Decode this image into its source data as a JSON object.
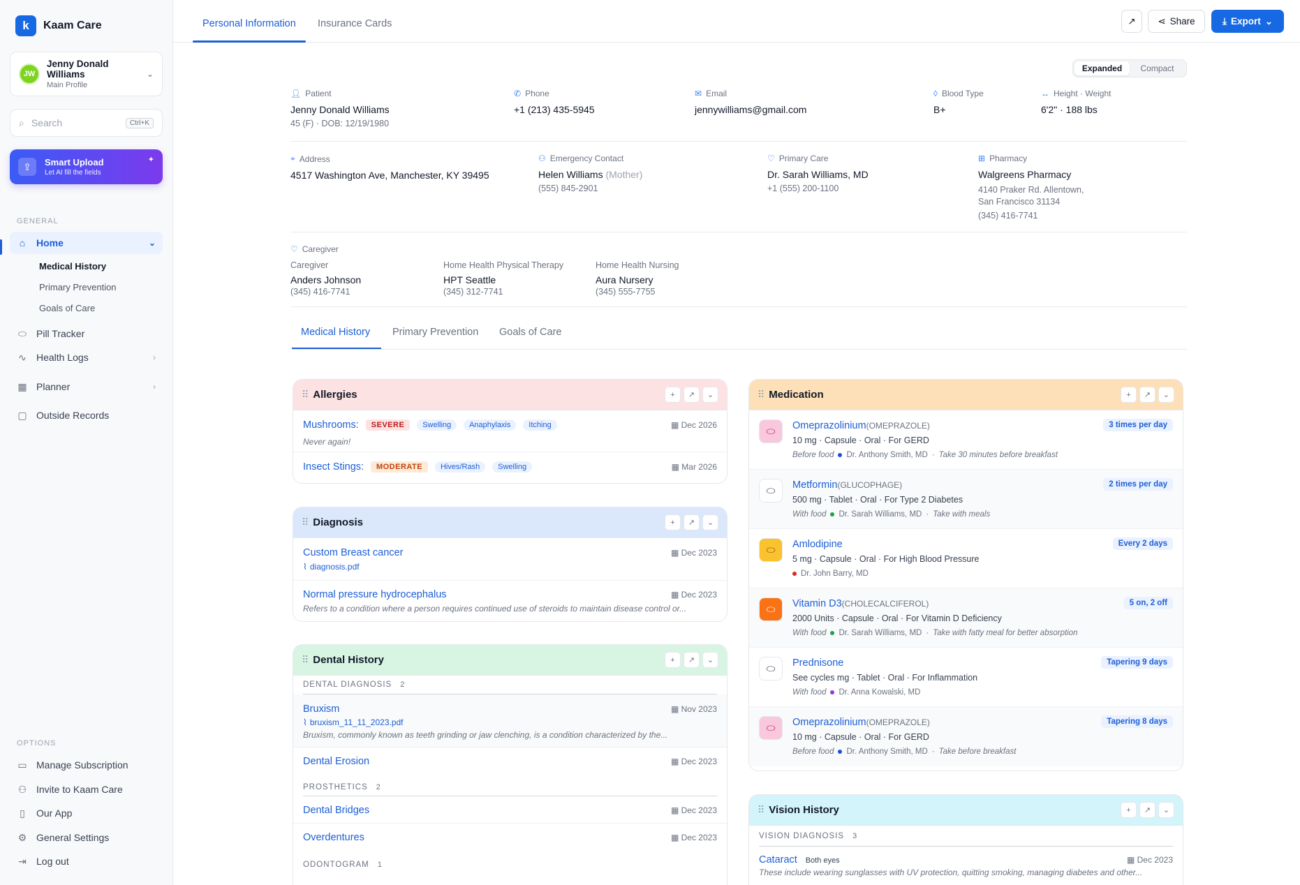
{
  "app": {
    "name": "Kaam Care"
  },
  "profile": {
    "initials": "JW",
    "name": "Jenny Donald Williams",
    "subtitle": "Main Profile"
  },
  "search": {
    "placeholder": "Search",
    "shortcut": "Ctrl+K"
  },
  "smart_upload": {
    "title": "Smart Upload",
    "subtitle": "Let AI fill the fields"
  },
  "sidebar": {
    "general_label": "GENERAL",
    "home": "Home",
    "home_sub": [
      "Medical History",
      "Primary Prevention",
      "Goals of Care"
    ],
    "items": [
      "Pill Tracker",
      "Health Logs",
      "Planner",
      "Outside Records"
    ],
    "options_label": "OPTIONS",
    "options": [
      "Manage Subscription",
      "Invite to Kaam Care",
      "Our App",
      "General Settings",
      "Log out"
    ]
  },
  "top_tabs": [
    "Personal Information",
    "Insurance Cards"
  ],
  "toolbar": {
    "share": "Share",
    "export": "Export"
  },
  "view_toggle": [
    "Expanded",
    "Compact"
  ],
  "personal": {
    "patient": {
      "label": "Patient",
      "value": "Jenny Donald Williams",
      "sub": "45 (F) · DOB: 12/19/1980"
    },
    "phone": {
      "label": "Phone",
      "value": "+1 (213) 435-5945"
    },
    "email": {
      "label": "Email",
      "value": "jennywilliams@gmail.com"
    },
    "blood": {
      "label": "Blood Type",
      "value": "B+"
    },
    "hw": {
      "label": "Height · Weight",
      "value": "6'2\" · 188 lbs"
    },
    "address": {
      "label": "Address",
      "value": "4517 Washington Ave, Manchester, KY 39495"
    },
    "emergency": {
      "label": "Emergency Contact",
      "name": "Helen Williams",
      "rel": "(Mother)",
      "phone": "(555) 845-2901"
    },
    "primary_care": {
      "label": "Primary Care",
      "value": "Dr. Sarah Williams, MD",
      "phone": "+1 (555) 200-1100"
    },
    "pharmacy": {
      "label": "Pharmacy",
      "value": "Walgreens Pharmacy",
      "addr1": "4140 Praker Rd. Allentown,",
      "addr2": "San Francisco 31134",
      "phone": "(345) 416-7741"
    },
    "caregiver": {
      "label": "Caregiver",
      "entries": [
        {
          "role": "Caregiver",
          "name": "Anders Johnson",
          "phone": "(345) 416-7741"
        },
        {
          "role": "Home Health Physical Therapy",
          "name": "HPT Seattle",
          "phone": "(345) 312-7741"
        },
        {
          "role": "Home Health Nursing",
          "name": "Aura Nursery",
          "phone": "(345) 555-7755"
        }
      ]
    }
  },
  "content_tabs": [
    "Medical History",
    "Primary Prevention",
    "Goals of Care"
  ],
  "allergies": {
    "title": "Allergies",
    "color": "#fde2e4",
    "items": [
      {
        "name": "Mushrooms:",
        "severity": "SEVERE",
        "tags": [
          "Swelling",
          "Anaphylaxis",
          "Itching"
        ],
        "date": "Dec 2026",
        "note": "Never again!"
      },
      {
        "name": "Insect Stings:",
        "severity": "MODERATE",
        "tags": [
          "Hives/Rash",
          "Swelling"
        ],
        "date": "Mar 2026"
      }
    ]
  },
  "diagnosis": {
    "title": "Diagnosis",
    "color": "#dbe8fb",
    "items": [
      {
        "name": "Custom Breast cancer",
        "file": "diagnosis.pdf",
        "date": "Dec 2023"
      },
      {
        "name": "Normal pressure hydrocephalus",
        "note": "Refers to a condition where a person requires continued use of steroids to maintain disease control or...",
        "date": "Dec 2023"
      }
    ]
  },
  "dental": {
    "title": "Dental History",
    "color": "#d8f5e4",
    "dx_label": "DENTAL DIAGNOSIS",
    "dx_count": "2",
    "bruxism": {
      "name": "Bruxism",
      "file": "bruxism_11_11_2023.pdf",
      "note": "Bruxism, commonly known as teeth grinding or jaw clenching, is a condition characterized by the...",
      "date": "Nov 2023"
    },
    "erosion": {
      "name": "Dental Erosion",
      "date": "Dec 2023"
    },
    "pros_label": "PROSTHETICS",
    "pros_count": "2",
    "bridges": {
      "name": "Dental Bridges",
      "date": "Dec 2023"
    },
    "overdentures": {
      "name": "Overdentures",
      "date": "Dec 2023"
    },
    "odonto_label": "ODONTOGRAM",
    "odonto_count": "1"
  },
  "medication": {
    "title": "Medication",
    "color": "#fde0b8",
    "items": [
      {
        "name": "Omeprazolinium",
        "generic": "(OMEPRAZOLE)",
        "detail": "10 mg · Capsule · Oral · For GERD",
        "when": "Before food",
        "doctor": "Dr. Anthony Smith, MD",
        "note": "Take 30 minutes before breakfast",
        "freq": "3 times per day",
        "icon_bg": "#f9c8dc",
        "dot": "#1d4ed8"
      },
      {
        "name": "Metformin",
        "generic": "(GLUCOPHAGE)",
        "detail": "500 mg · Tablet · Oral · For Type 2 Diabetes",
        "when": "With food",
        "doctor": "Dr. Sarah Williams, MD",
        "note": "Take with meals",
        "freq": "2 times per day",
        "icon_bg": "#ffffff",
        "dot": "#16a34a"
      },
      {
        "name": "Amlodipine",
        "generic": "",
        "detail": "5 mg · Capsule · Oral · For High Blood Pressure",
        "when": "",
        "doctor": "Dr. John Barry, MD",
        "note": "",
        "freq": "Every 2 days",
        "icon_bg": "#f9c22e",
        "dot": "#dc2626"
      },
      {
        "name": "Vitamin D3",
        "generic": "(CHOLECALCIFEROL)",
        "detail": "2000 Units · Capsule · Oral · For Vitamin D Deficiency",
        "when": "With food",
        "doctor": "Dr. Sarah Williams, MD",
        "note": "Take with fatty meal for better absorption",
        "freq": "5 on, 2 off",
        "icon_bg": "#f97316",
        "dot": "#16a34a"
      },
      {
        "name": "Prednisone",
        "generic": "",
        "detail": "See cycles mg · Tablet · Oral · For Inflammation",
        "when": "With food",
        "doctor": "Dr. Anna Kowalski, MD",
        "note": "",
        "freq": "Tapering 9 days",
        "icon_bg": "#ffffff",
        "dot": "#9333ea"
      },
      {
        "name": "Omeprazolinium",
        "generic": "(OMEPRAZOLE)",
        "detail": "10 mg · Capsule · Oral · For GERD",
        "when": "Before food",
        "doctor": "Dr. Anthony Smith, MD",
        "note": "Take before breakfast",
        "freq": "Tapering 8 days",
        "icon_bg": "#f9c8dc",
        "dot": "#1d4ed8"
      }
    ]
  },
  "vision": {
    "title": "Vision History",
    "color": "#d3f4fa",
    "dx_label": "VISION DIAGNOSIS",
    "dx_count": "3",
    "item": {
      "name": "Cataract",
      "tag": "Both eyes",
      "date": "Dec 2023",
      "note": "These include wearing sunglasses with UV protection, quitting smoking, managing diabetes and other..."
    }
  }
}
